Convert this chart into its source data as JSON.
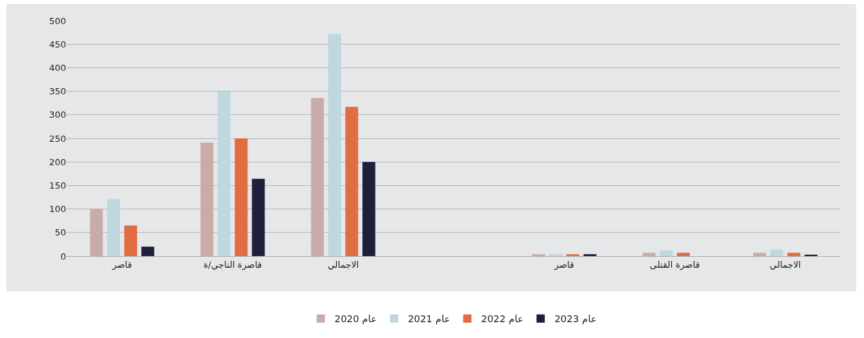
{
  "chart_data": {
    "type": "bar",
    "categories": [
      "قاصر",
      "قاصرة الناجي/ة",
      "الاجمالي",
      null,
      "قاصر",
      "قاصرة القتلى",
      "الاجمالي"
    ],
    "series": [
      {
        "name": "عام 2020",
        "color": "#c9aca7",
        "values": [
          100,
          241,
          336,
          null,
          4,
          7,
          7
        ]
      },
      {
        "name": "عام 2021",
        "color": "#bfd7df",
        "values": [
          121,
          349,
          472,
          null,
          4,
          12,
          14
        ]
      },
      {
        "name": "عام 2022",
        "color": "#e06e41",
        "values": [
          65,
          250,
          317,
          null,
          4,
          7,
          7
        ]
      },
      {
        "name": "عام 2023",
        "color": "#1f1e3b",
        "values": [
          20,
          164,
          200,
          null,
          4,
          null,
          3
        ]
      }
    ],
    "ylim": [
      0,
      500
    ],
    "yticks": [
      0,
      50,
      100,
      150,
      200,
      250,
      300,
      350,
      400,
      450,
      500
    ],
    "grid": "y",
    "legend": "bottom"
  }
}
